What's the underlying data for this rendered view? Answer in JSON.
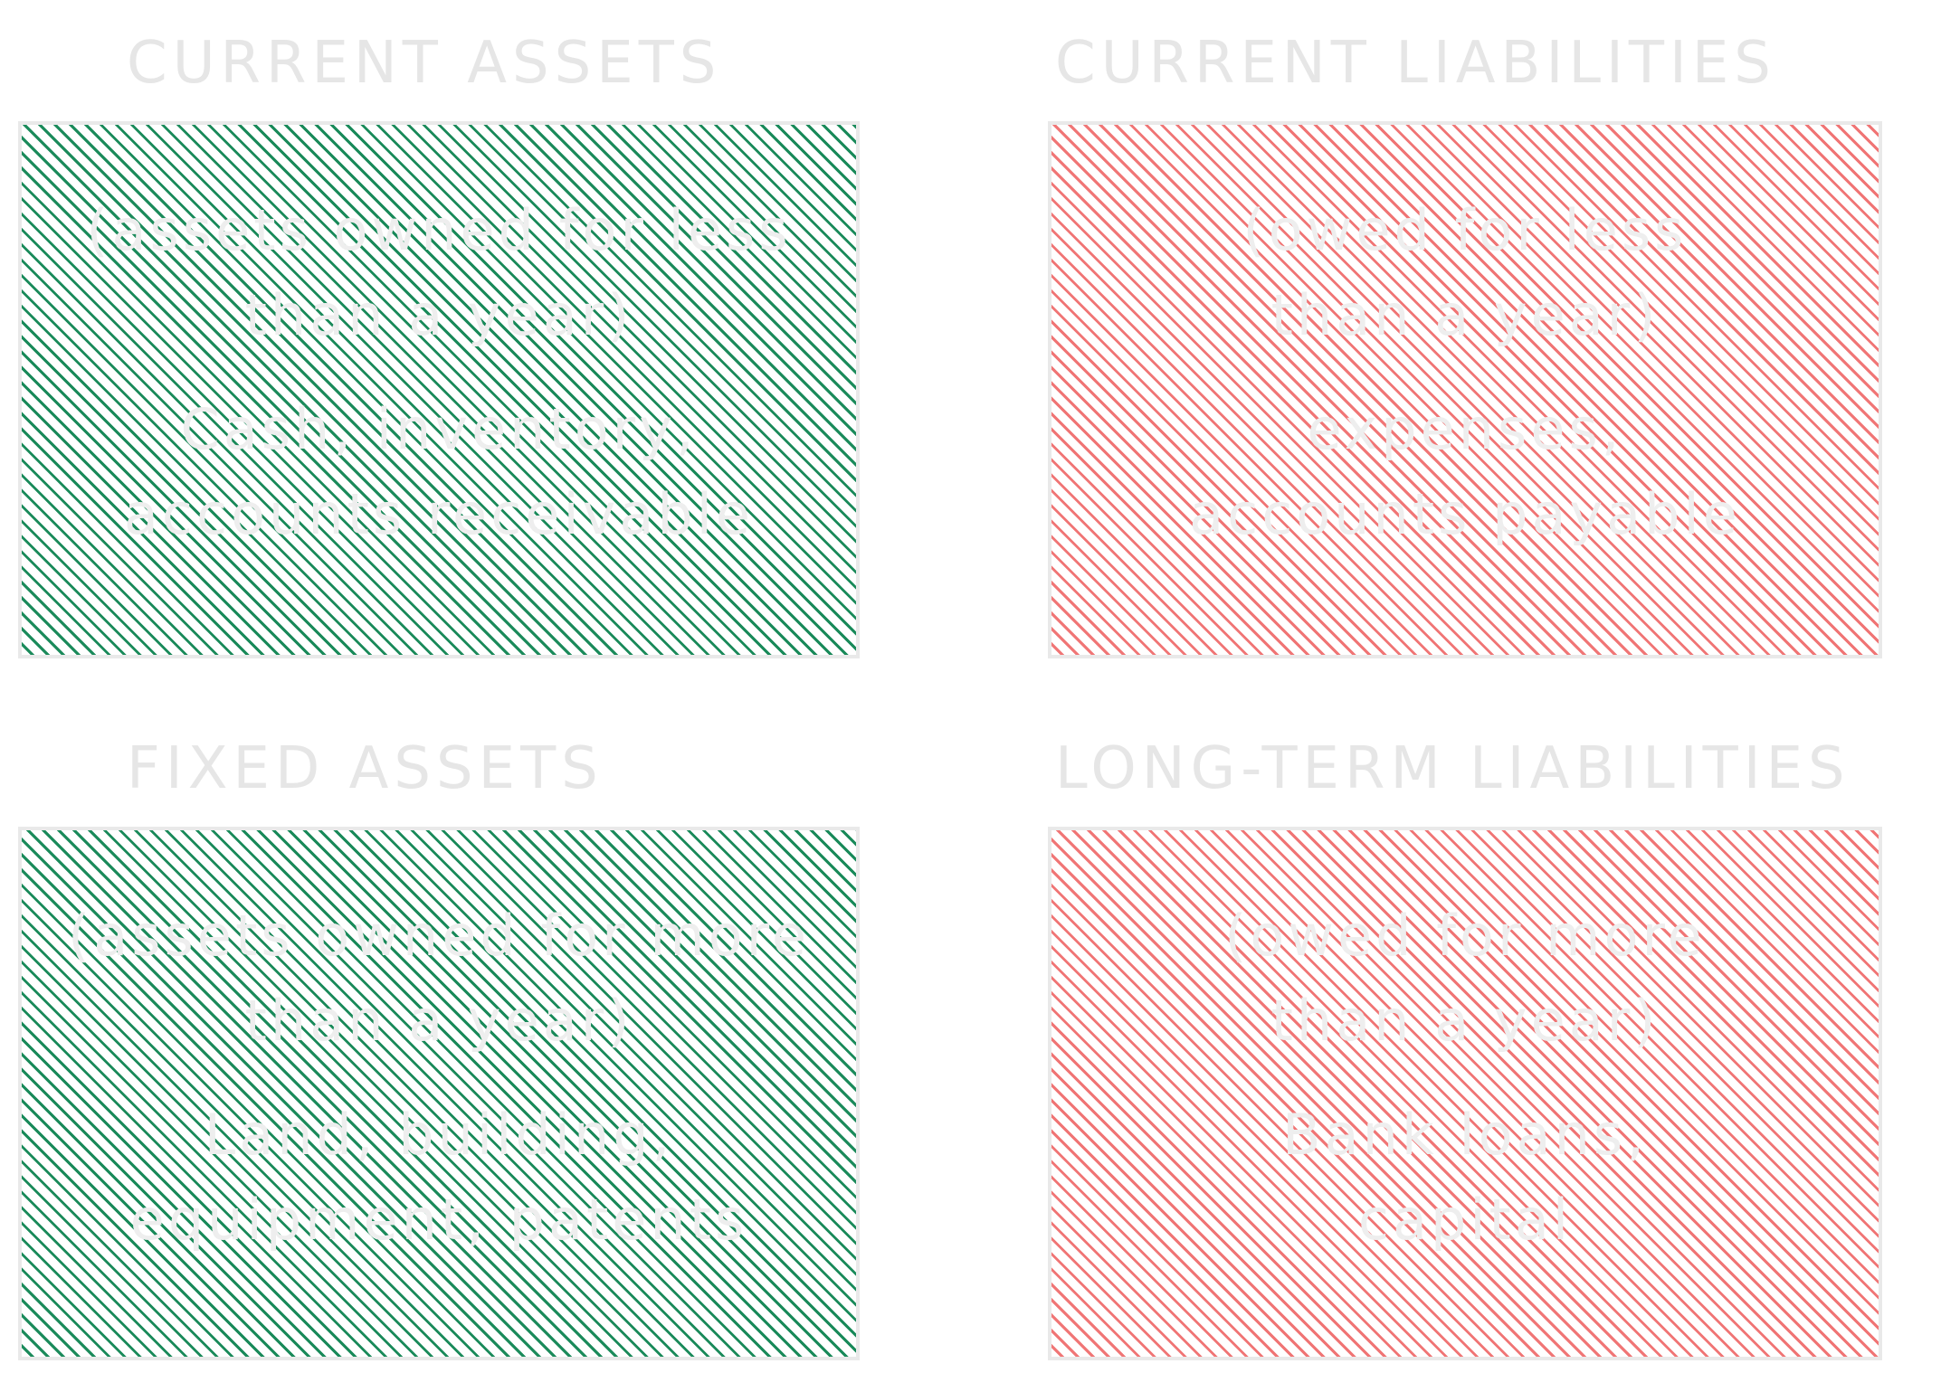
{
  "quadrants": [
    {
      "title": "CURRENT ASSETS",
      "color": "#1a8a5a",
      "lines": [
        "(assets owned for less",
        "than a year)"
      ],
      "examples": [
        "Cash, inventory,",
        "accounts receivable"
      ]
    },
    {
      "title": "CURRENT LIABILITIES",
      "color": "#f07575",
      "lines": [
        "(owed for less",
        "than a year)"
      ],
      "examples": [
        "expenses,",
        "accounts payable"
      ]
    },
    {
      "title": "FIXED ASSETS",
      "color": "#1a8a5a",
      "lines": [
        "(assets owned for more",
        "than a year)"
      ],
      "examples": [
        "Land, building,",
        "equipment, patents"
      ]
    },
    {
      "title": "LONG-TERM LIABILITIES",
      "color": "#f07575",
      "lines": [
        "(owed for more",
        "than a year)"
      ],
      "examples": [
        "Bank loans,",
        "capital"
      ]
    }
  ],
  "colors": {
    "assets": "#1a8a5a",
    "liabilities": "#f07575",
    "outline": "#e9e9e9",
    "text": "#eeeeee"
  }
}
